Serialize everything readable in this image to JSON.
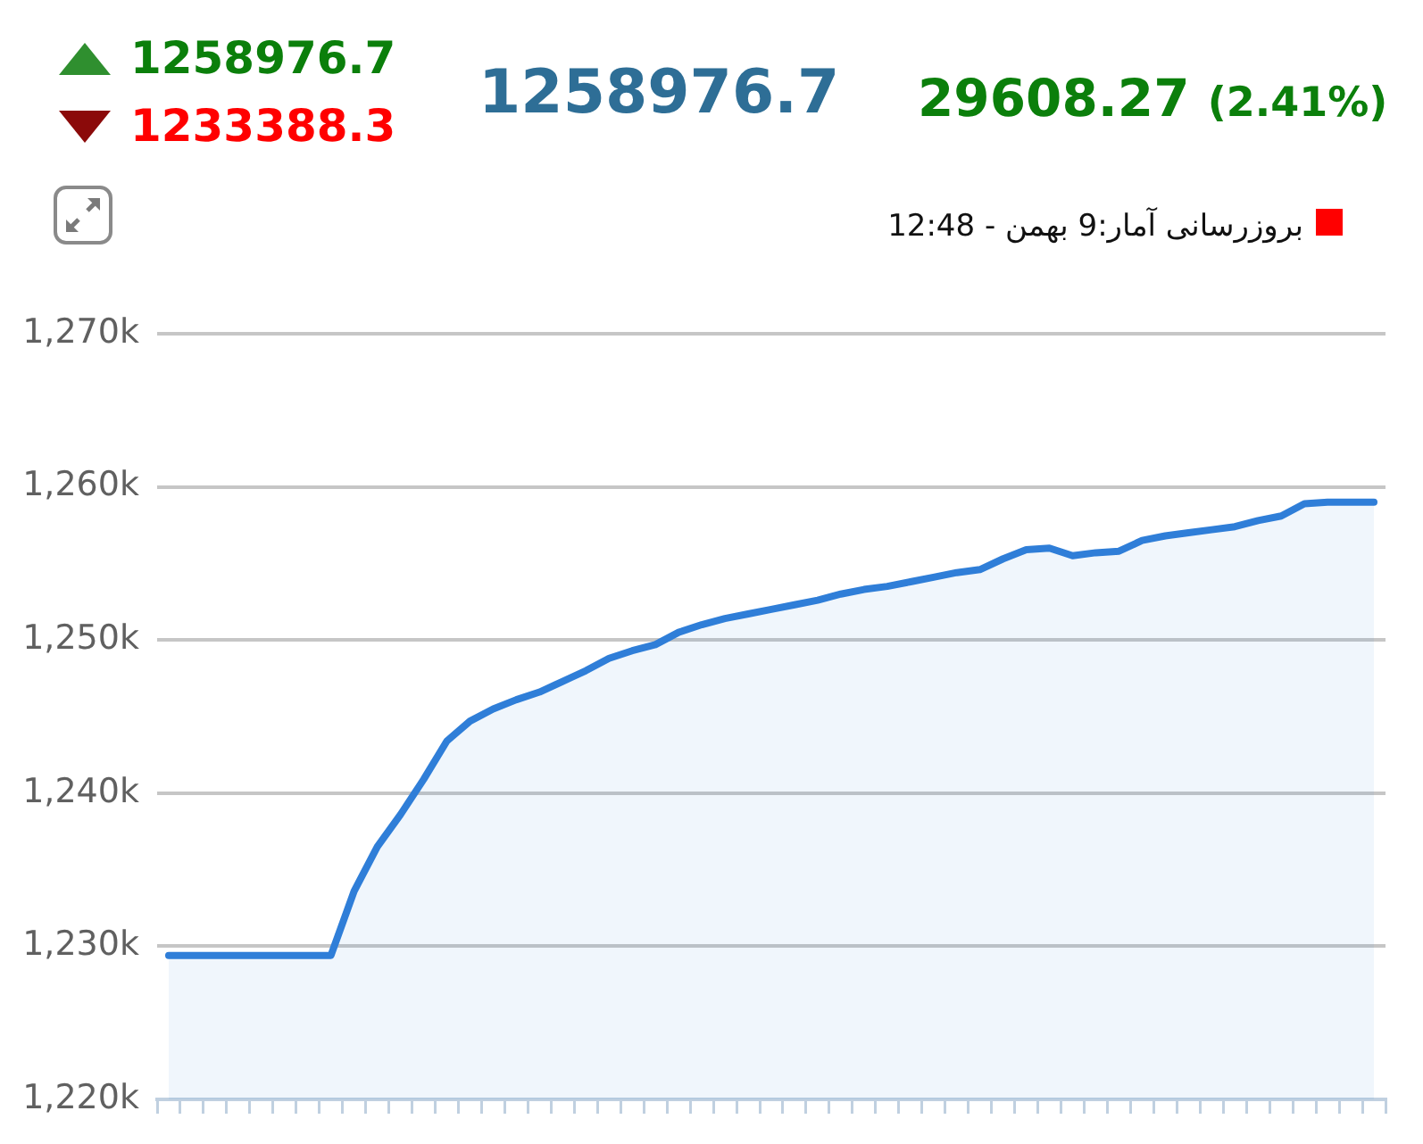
{
  "chart_data": {
    "type": "area",
    "title": "1258976.7",
    "subtitle": "29608.27 (2.41%)",
    "annotations": [
      "1258976.7",
      "1233388.3",
      "بروزرسانی آمار:9 بهمن - 12:48"
    ],
    "categories": [
      null,
      null,
      null,
      null,
      null,
      null,
      null,
      null,
      null,
      null,
      null,
      null,
      null,
      null,
      null,
      null,
      null,
      null,
      null,
      null,
      null,
      null,
      null,
      null,
      null,
      null,
      null,
      null,
      null,
      null,
      null,
      null,
      null,
      null,
      null,
      null,
      null,
      null,
      null,
      null,
      null,
      null,
      null,
      null,
      null,
      null,
      null,
      null,
      null,
      null,
      null,
      null,
      null
    ],
    "series": [
      {
        "color": "#2f7ed8",
        "values": [
          1229400,
          1229400,
          1229400,
          1229400,
          1229400,
          1229400,
          1229400,
          1229400,
          1233600,
          1236500,
          1238600,
          1240900,
          1243400,
          1244700,
          1245500,
          1246100,
          1246600,
          1247300,
          1248000,
          1248800,
          1249300,
          1249700,
          1250500,
          1251000,
          1251400,
          1251700,
          1252000,
          1252300,
          1252600,
          1253000,
          1253300,
          1253500,
          1253800,
          1254100,
          1254400,
          1254600,
          1255300,
          1255900,
          1256000,
          1255500,
          1255700,
          1255800,
          1256500,
          1256800,
          1257000,
          1257200,
          1257400,
          1257800,
          1258100,
          1258900,
          1259000,
          1259000,
          1259000
        ]
      }
    ],
    "ylim": [
      1220000,
      1270000
    ],
    "yticks": [
      {
        "value": 1220000,
        "label": "1,220k"
      },
      {
        "value": 1230000,
        "label": "1,230k"
      },
      {
        "value": 1240000,
        "label": "1,240k"
      },
      {
        "value": 1250000,
        "label": "1,250k"
      },
      {
        "value": 1260000,
        "label": "1,260k"
      },
      {
        "value": 1270000,
        "label": "1,270k"
      }
    ],
    "grid": "y",
    "legend": false,
    "tick_labels": "y",
    "marker": "none"
  }
}
